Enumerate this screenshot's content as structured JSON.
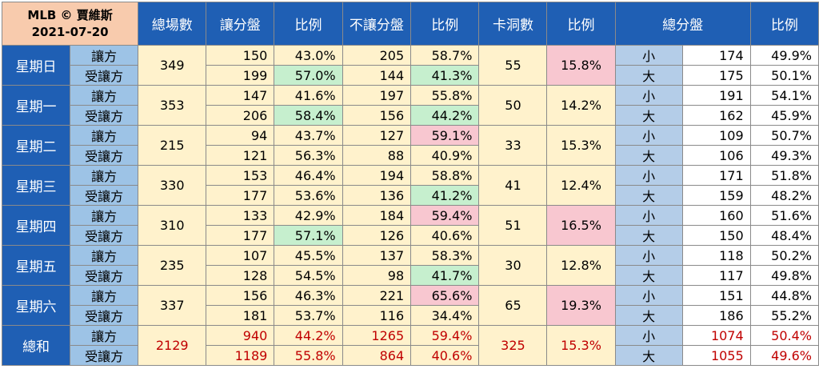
{
  "title": {
    "line1": "MLB © 賈維斯",
    "line2": "2021-07-20"
  },
  "headers": [
    "總場數",
    "讓分盤",
    "比例",
    "不讓分盤",
    "比例",
    "卡洞數",
    "比例",
    "總分盤",
    "比例"
  ],
  "sides": {
    "give": "讓方",
    "receive": "受讓方"
  },
  "ou": {
    "under": "小",
    "over": "大"
  },
  "days": [
    {
      "name": "星期日",
      "total": "349",
      "give": {
        "spread": "150",
        "spread_pct": "43.0%",
        "nospread": "205",
        "nospread_pct": "58.7%"
      },
      "receive": {
        "spread": "199",
        "spread_pct": "57.0%",
        "nospread": "144",
        "nospread_pct": "41.3%"
      },
      "push": "55",
      "push_pct": "15.8%",
      "under": "174",
      "under_pct": "49.9%",
      "over": "175",
      "over_pct": "50.1%"
    },
    {
      "name": "星期一",
      "total": "353",
      "give": {
        "spread": "147",
        "spread_pct": "41.6%",
        "nospread": "197",
        "nospread_pct": "55.8%"
      },
      "receive": {
        "spread": "206",
        "spread_pct": "58.4%",
        "nospread": "156",
        "nospread_pct": "44.2%"
      },
      "push": "50",
      "push_pct": "14.2%",
      "under": "191",
      "under_pct": "54.1%",
      "over": "162",
      "over_pct": "45.9%"
    },
    {
      "name": "星期二",
      "total": "215",
      "give": {
        "spread": "94",
        "spread_pct": "43.7%",
        "nospread": "127",
        "nospread_pct": "59.1%"
      },
      "receive": {
        "spread": "121",
        "spread_pct": "56.3%",
        "nospread": "88",
        "nospread_pct": "40.9%"
      },
      "push": "33",
      "push_pct": "15.3%",
      "under": "109",
      "under_pct": "50.7%",
      "over": "106",
      "over_pct": "49.3%"
    },
    {
      "name": "星期三",
      "total": "330",
      "give": {
        "spread": "153",
        "spread_pct": "46.4%",
        "nospread": "194",
        "nospread_pct": "58.8%"
      },
      "receive": {
        "spread": "177",
        "spread_pct": "53.6%",
        "nospread": "136",
        "nospread_pct": "41.2%"
      },
      "push": "41",
      "push_pct": "12.4%",
      "under": "171",
      "under_pct": "51.8%",
      "over": "159",
      "over_pct": "48.2%"
    },
    {
      "name": "星期四",
      "total": "310",
      "give": {
        "spread": "133",
        "spread_pct": "42.9%",
        "nospread": "184",
        "nospread_pct": "59.4%"
      },
      "receive": {
        "spread": "177",
        "spread_pct": "57.1%",
        "nospread": "126",
        "nospread_pct": "40.6%"
      },
      "push": "51",
      "push_pct": "16.5%",
      "under": "160",
      "under_pct": "51.6%",
      "over": "150",
      "over_pct": "48.4%"
    },
    {
      "name": "星期五",
      "total": "235",
      "give": {
        "spread": "107",
        "spread_pct": "45.5%",
        "nospread": "137",
        "nospread_pct": "58.3%"
      },
      "receive": {
        "spread": "128",
        "spread_pct": "54.5%",
        "nospread": "98",
        "nospread_pct": "41.7%"
      },
      "push": "30",
      "push_pct": "12.8%",
      "under": "118",
      "under_pct": "50.2%",
      "over": "117",
      "over_pct": "49.8%"
    },
    {
      "name": "星期六",
      "total": "337",
      "give": {
        "spread": "156",
        "spread_pct": "46.3%",
        "nospread": "221",
        "nospread_pct": "65.6%"
      },
      "receive": {
        "spread": "181",
        "spread_pct": "53.7%",
        "nospread": "116",
        "nospread_pct": "34.4%"
      },
      "push": "65",
      "push_pct": "19.3%",
      "under": "151",
      "under_pct": "44.8%",
      "over": "186",
      "over_pct": "55.2%"
    }
  ],
  "total": {
    "name": "總和",
    "total": "2129",
    "give": {
      "spread": "940",
      "spread_pct": "44.2%",
      "nospread": "1265",
      "nospread_pct": "59.4%"
    },
    "receive": {
      "spread": "1189",
      "spread_pct": "55.8%",
      "nospread": "864",
      "nospread_pct": "40.6%"
    },
    "push": "325",
    "push_pct": "15.3%",
    "under": "1074",
    "under_pct": "50.4%",
    "over": "1055",
    "over_pct": "49.6%"
  },
  "colors": {
    "header_blue": "#1f5fb4",
    "side_blue": "#9dc3e6",
    "cream": "#fff2cc",
    "green_highlight": "#c6efce",
    "pink_highlight": "#f8c7d0",
    "total_red": "#c00000",
    "title_peach": "#f8cbad"
  },
  "highlights": {
    "green": [
      "days.0.receive.spread_pct",
      "days.0.receive.nospread_pct",
      "days.1.receive.spread_pct",
      "days.1.receive.nospread_pct",
      "days.3.receive.nospread_pct",
      "days.4.receive.spread_pct",
      "days.5.receive.nospread_pct"
    ],
    "pink": [
      "days.0.push_pct",
      "days.2.give.nospread_pct",
      "days.4.give.nospread_pct",
      "days.4.push_pct",
      "days.6.give.nospread_pct",
      "days.6.push_pct"
    ]
  }
}
